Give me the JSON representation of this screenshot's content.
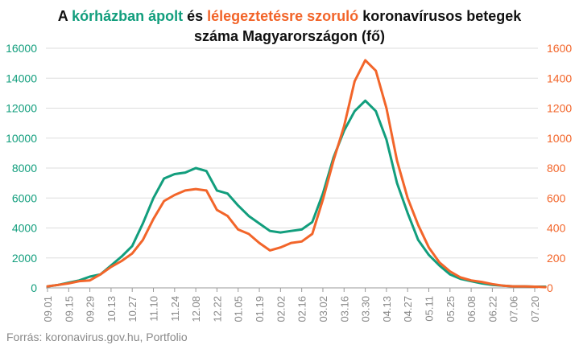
{
  "title": {
    "part1": "A ",
    "part2": "kórházban ápolt",
    "part3": " és ",
    "part4": "lélegeztetésre szoruló",
    "part5": " koronavírusos betegek",
    "line2": "száma Magyarországon  (fő)"
  },
  "source": "Forrás: koronavirus.gov.hu, Portfolio",
  "colors": {
    "hospitalized": "#129e7d",
    "ventilated": "#f2652a",
    "grid": "#dddddd",
    "axis": "#999999"
  },
  "chart_data": {
    "type": "line",
    "title": "A kórházban ápolt és lélegeztetésre szoruló koronavírusos betegek száma Magyarországon  (fő)",
    "x_tick_labels": [
      "09.01",
      "09.15",
      "09.29",
      "10.13",
      "10.27",
      "11.10",
      "11.24",
      "12.08",
      "12.22",
      "01.05",
      "01.19",
      "02.02",
      "02.16",
      "03.02",
      "03.16",
      "03.30",
      "04.13",
      "04.27",
      "05.11",
      "05.25",
      "06.08",
      "06.22",
      "07.06",
      "07.20"
    ],
    "y_left": {
      "ticks": [
        "0",
        "2000",
        "4000",
        "6000",
        "8000",
        "10000",
        "12000",
        "14000",
        "16000"
      ],
      "ylim": [
        0,
        16000
      ]
    },
    "y_right": {
      "ticks": [
        "0",
        "200",
        "400",
        "600",
        "800",
        "1000",
        "1200",
        "1400",
        "1600"
      ],
      "ylim": [
        0,
        1600
      ]
    },
    "grid": true,
    "series": [
      {
        "name": "kórházban ápolt",
        "axis": "left",
        "color": "#129e7d",
        "x": [
          "09.01",
          "09.08",
          "09.15",
          "09.22",
          "09.29",
          "10.06",
          "10.13",
          "10.20",
          "10.27",
          "11.03",
          "11.10",
          "11.17",
          "11.24",
          "12.01",
          "12.08",
          "12.15",
          "12.22",
          "12.29",
          "01.05",
          "01.12",
          "01.19",
          "01.26",
          "02.02",
          "02.09",
          "02.16",
          "02.23",
          "03.02",
          "03.09",
          "03.16",
          "03.23",
          "03.30",
          "04.06",
          "04.13",
          "04.20",
          "04.27",
          "05.04",
          "05.11",
          "05.18",
          "05.25",
          "06.01",
          "06.08",
          "06.15",
          "06.22",
          "06.29",
          "07.06",
          "07.13",
          "07.20",
          "07.27"
        ],
        "values": [
          100,
          200,
          350,
          500,
          750,
          900,
          1500,
          2100,
          2800,
          4300,
          6000,
          7300,
          7600,
          7700,
          8000,
          7800,
          6500,
          6300,
          5500,
          4800,
          4300,
          3800,
          3700,
          3800,
          3900,
          4400,
          6300,
          8700,
          10500,
          11800,
          12500,
          11800,
          9900,
          7000,
          5000,
          3200,
          2200,
          1500,
          900,
          600,
          450,
          300,
          200,
          150,
          100,
          100,
          80,
          80
        ]
      },
      {
        "name": "lélegeztetésre szoruló",
        "axis": "right",
        "color": "#f2652a",
        "x": [
          "09.01",
          "09.08",
          "09.15",
          "09.22",
          "09.29",
          "10.06",
          "10.13",
          "10.20",
          "10.27",
          "11.03",
          "11.10",
          "11.17",
          "11.24",
          "12.01",
          "12.08",
          "12.15",
          "12.22",
          "12.29",
          "01.05",
          "01.12",
          "01.19",
          "01.26",
          "02.02",
          "02.09",
          "02.16",
          "02.23",
          "03.02",
          "03.09",
          "03.16",
          "03.23",
          "03.30",
          "04.06",
          "04.13",
          "04.20",
          "04.27",
          "05.04",
          "05.11",
          "05.18",
          "05.25",
          "06.01",
          "06.08",
          "06.15",
          "06.22",
          "06.29",
          "07.06",
          "07.13",
          "07.20",
          "07.27"
        ],
        "values": [
          10,
          20,
          30,
          45,
          50,
          90,
          140,
          180,
          230,
          320,
          460,
          580,
          620,
          650,
          660,
          650,
          520,
          480,
          390,
          360,
          300,
          250,
          270,
          300,
          310,
          360,
          590,
          850,
          1080,
          1380,
          1520,
          1450,
          1200,
          850,
          600,
          420,
          270,
          170,
          110,
          70,
          50,
          40,
          25,
          15,
          10,
          10,
          8,
          5
        ]
      }
    ]
  }
}
